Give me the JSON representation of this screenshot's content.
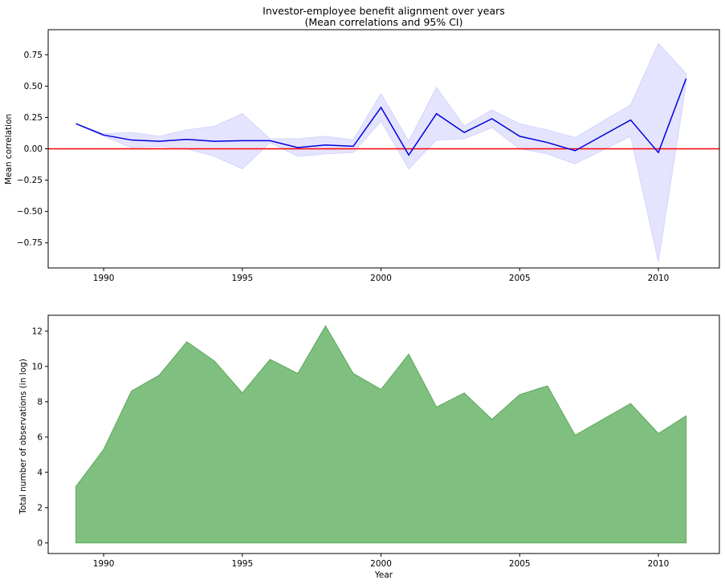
{
  "chart_data": [
    {
      "type": "line",
      "title": "Investor-employee benefit alignment over years",
      "subtitle": "(Mean correlations and 95% CI)",
      "xlabel": "",
      "ylabel": "Mean correlation",
      "xlim": [
        1988,
        2012.2
      ],
      "ylim": [
        -0.95,
        0.95
      ],
      "xticks": [
        1990,
        1995,
        2000,
        2005,
        2010
      ],
      "yticks": [
        -0.75,
        -0.5,
        -0.25,
        0.0,
        0.25,
        0.5,
        0.75
      ],
      "ytick_labels": [
        "−0.75",
        "−0.50",
        "−0.25",
        "0.00",
        "0.25",
        "0.50",
        "0.75"
      ],
      "reference_line": {
        "y": 0.0,
        "color": "#ff0000"
      },
      "line_color": "#0000dd",
      "band_color": "#e4e4ff",
      "grid": false,
      "x": [
        1989,
        1990,
        1991,
        1992,
        1993,
        1994,
        1995,
        1996,
        1997,
        1998,
        1999,
        2000,
        2001,
        2002,
        2003,
        2004,
        2005,
        2006,
        2007,
        2009,
        2010,
        2011
      ],
      "mean": [
        0.2,
        0.11,
        0.07,
        0.06,
        0.075,
        0.06,
        0.065,
        0.065,
        0.01,
        0.03,
        0.02,
        0.33,
        -0.05,
        0.28,
        0.13,
        0.24,
        0.1,
        0.05,
        -0.015,
        0.23,
        -0.03,
        0.56
      ],
      "ci_lower": [
        0.2,
        0.1,
        0.01,
        0.02,
        0.0,
        -0.06,
        -0.16,
        0.05,
        -0.06,
        -0.04,
        -0.03,
        0.22,
        -0.16,
        0.07,
        0.08,
        0.17,
        0.0,
        -0.04,
        -0.12,
        0.1,
        -0.9,
        0.52
      ],
      "ci_upper": [
        0.2,
        0.12,
        0.13,
        0.1,
        0.15,
        0.18,
        0.28,
        0.08,
        0.08,
        0.1,
        0.07,
        0.44,
        0.06,
        0.49,
        0.18,
        0.31,
        0.2,
        0.15,
        0.09,
        0.35,
        0.84,
        0.6
      ]
    },
    {
      "type": "area",
      "title": "",
      "xlabel": "Year",
      "ylabel": "Total number of observations (in log)",
      "xlim": [
        1988,
        2012.2
      ],
      "ylim": [
        -0.6,
        12.9
      ],
      "xticks": [
        1990,
        1995,
        2000,
        2005,
        2010
      ],
      "yticks": [
        0,
        2,
        4,
        6,
        8,
        10,
        12
      ],
      "fill_color": "#7fbf7f",
      "edge_color": "#5aa85a",
      "grid": false,
      "x": [
        1989,
        1990,
        1991,
        1992,
        1993,
        1994,
        1995,
        1996,
        1997,
        1998,
        1999,
        2000,
        2001,
        2002,
        2003,
        2004,
        2005,
        2006,
        2007,
        2009,
        2010,
        2011
      ],
      "values": [
        3.2,
        5.3,
        8.6,
        9.5,
        11.4,
        10.3,
        8.5,
        10.4,
        9.6,
        12.3,
        9.6,
        8.7,
        10.7,
        7.7,
        8.5,
        7.0,
        8.4,
        8.9,
        6.1,
        7.9,
        6.2,
        7.2
      ]
    }
  ]
}
